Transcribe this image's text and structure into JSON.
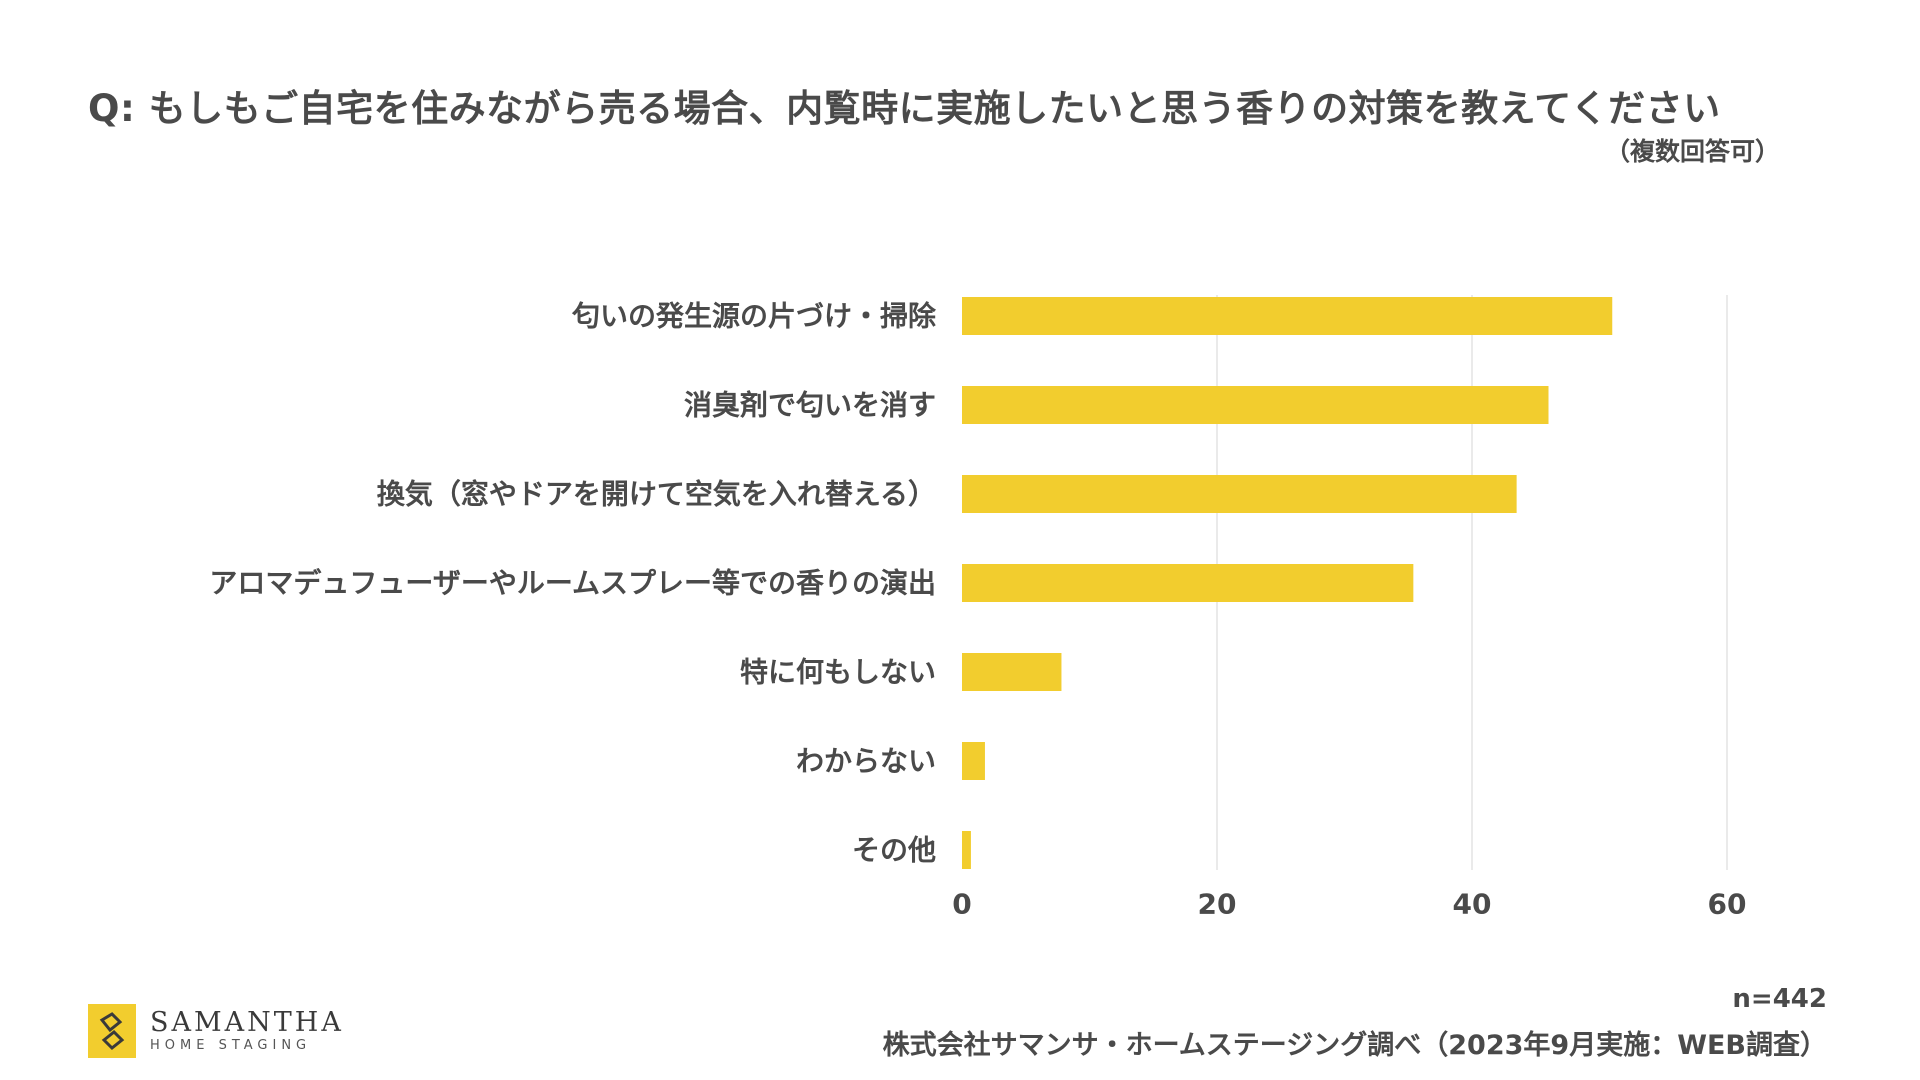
{
  "title": "Q: もしもご自宅を住みながら売る場合、内覧時に実施したいと思う香りの対策を教えてください",
  "subtitle": "（複数回答可）",
  "n_label": "n=442",
  "source": "株式会社サマンサ・ホームステージング調べ（2023年9月実施：WEB調査）",
  "logo": {
    "name": "SAMANTHA",
    "tagline": "HOME STAGING"
  },
  "colors": {
    "bar": "#f2cd2e",
    "text": "#4a4a4a",
    "grid": "#e3e3e3"
  },
  "chart_data": {
    "type": "bar",
    "orientation": "horizontal",
    "categories": [
      "匂いの発生源の片づけ・掃除",
      "消臭剤で匂いを消す",
      "換気（窓やドアを開けて空気を入れ替える）",
      "アロマデュフューザーやルームスプレー等での香りの演出",
      "特に何もしない",
      "わからない",
      "その他"
    ],
    "values": [
      51,
      46,
      43.5,
      35.4,
      7.8,
      1.8,
      0.7
    ],
    "xlim": [
      0,
      60
    ],
    "xticks": [
      0,
      20,
      40,
      60
    ],
    "grid": "vertical"
  }
}
